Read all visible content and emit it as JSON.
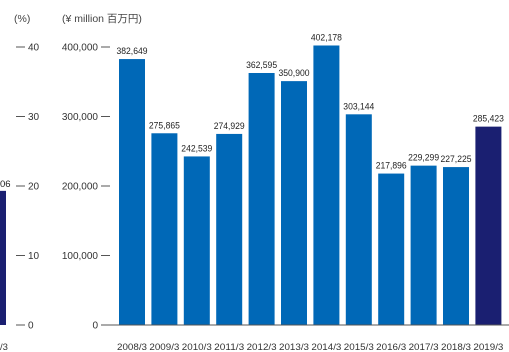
{
  "chart_data": {
    "type": "bar",
    "title": "",
    "xlabel": "",
    "ylabel": "",
    "left_axis": {
      "unit": "(%)",
      "ticks": [
        "40",
        "30",
        "20",
        "10",
        "0"
      ],
      "range": [
        0,
        40
      ]
    },
    "right_axis": {
      "unit": "(¥ million  百万円)",
      "ticks": [
        "400,000",
        "300,000",
        "200,000",
        "100,000",
        "0"
      ],
      "range": [
        0,
        400000
      ]
    },
    "categories": [
      "2008/3",
      "2009/3",
      "2010/3",
      "2011/3",
      "2012/3",
      "2013/3",
      "2014/3",
      "2015/3",
      "2016/3",
      "2017/3",
      "2018/3",
      "2019/3"
    ],
    "values": [
      382649,
      275865,
      242539,
      274929,
      362595,
      350900,
      402178,
      303144,
      217896,
      229299,
      227225,
      285423
    ],
    "value_labels": [
      "382,649",
      "275,865",
      "242,539",
      "274,929",
      "362,595",
      "350,900",
      "402,178",
      "303,144",
      "217,896",
      "229,299",
      "227,225",
      "285,423"
    ],
    "bar_color": "#0068b7",
    "highlight_color": "#1a1f71",
    "highlight_index": 11,
    "partial_bar": {
      "value_percent": 19.3,
      "label_fragment": "06",
      "category_fragment": "/3",
      "color": "#1a1f71"
    },
    "grid": false
  }
}
